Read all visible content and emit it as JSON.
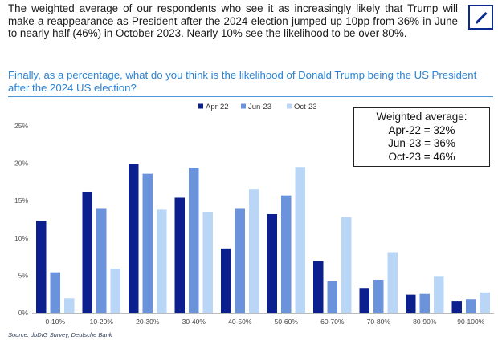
{
  "intro_text": "The weighted average of our respondents who see it as increasingly likely that Trump will make a reappearance as President after the 2024 election jumped up 10pp from 36% in June to nearly half (46%) in October 2023. Nearly 10% see the likelihood to be over 80%.",
  "question_text": "Finally, as a percentage, what do you think is the likelihood of Donald Trump being the US President after the 2024 US election?",
  "source_text": "Source: dbDIG Survey, Deutsche Bank",
  "weighted_average": {
    "title": "Weighted average:",
    "lines": [
      "Apr-22 = 32%",
      "Jun-23 = 36%",
      "Oct-23 = 46%"
    ]
  },
  "colors": {
    "apr22": "#0b1f8f",
    "jun23": "#6b93dc",
    "oct23": "#b9d6f7",
    "question": "#2b83d4",
    "logo": "#0b2a8f"
  },
  "chart_data": {
    "type": "bar",
    "categories": [
      "0-10%",
      "10-20%",
      "20-30%",
      "30-40%",
      "40-50%",
      "50-60%",
      "60-70%",
      "70-80%",
      "80-90%",
      "90-100%"
    ],
    "series": [
      {
        "name": "Apr-22",
        "values": [
          12.3,
          16.1,
          19.9,
          15.4,
          8.6,
          13.2,
          6.9,
          3.3,
          2.4,
          1.6
        ]
      },
      {
        "name": "Jun-23",
        "values": [
          5.4,
          13.9,
          18.6,
          19.4,
          13.9,
          15.7,
          4.2,
          4.4,
          2.5,
          1.8
        ]
      },
      {
        "name": "Oct-23",
        "values": [
          1.9,
          5.9,
          13.8,
          13.5,
          16.5,
          19.5,
          12.8,
          8.1,
          4.9,
          2.7
        ]
      }
    ],
    "yticks": [
      "0%",
      "5%",
      "10%",
      "15%",
      "20%",
      "25%"
    ],
    "ylim": [
      0,
      25
    ],
    "legend_position": "top-center",
    "grid": false
  }
}
